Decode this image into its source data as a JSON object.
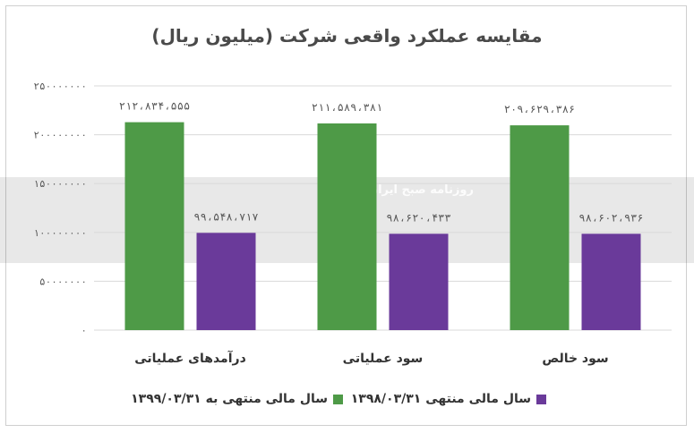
{
  "chart_data": {
    "type": "bar",
    "title": "مقایسه عملکرد واقعی شرکت (میلیون ریال)",
    "categories": [
      "درآمدهای عملیاتی",
      "سود عملیاتی",
      "سود خالص"
    ],
    "series": [
      {
        "name": "سال مالی منتهی به ۱۳۹۹/۰۳/۳۱",
        "color": "#4e9a47",
        "values": [
          212834555,
          211589381,
          209629386
        ],
        "labels": [
          "۲۱۲،۸۳۴،۵۵۵",
          "۲۱۱،۵۸۹،۳۸۱",
          "۲۰۹،۶۲۹،۳۸۶"
        ]
      },
      {
        "name": "سال مالی منتهی ۱۳۹۸/۰۳/۳۱",
        "color": "#6a3a9a",
        "values": [
          99548717,
          98620433,
          98602936
        ],
        "labels": [
          "۹۹،۵۴۸،۷۱۷",
          "۹۸،۶۲۰،۴۳۳",
          "۹۸،۶۰۲،۹۳۶"
        ]
      }
    ],
    "ylim": [
      0,
      250000000
    ],
    "yticks": [
      0,
      50000000,
      100000000,
      150000000,
      200000000,
      250000000
    ],
    "ytick_labels": [
      "۰",
      "۵۰۰۰۰۰۰۰",
      "۱۰۰۰۰۰۰۰۰",
      "۱۵۰۰۰۰۰۰۰",
      "۲۰۰۰۰۰۰۰۰",
      "۲۵۰۰۰۰۰۰۰"
    ],
    "grid": true,
    "legend_position": "bottom"
  },
  "watermark": {
    "text": "روزنامه صبح ایران"
  }
}
